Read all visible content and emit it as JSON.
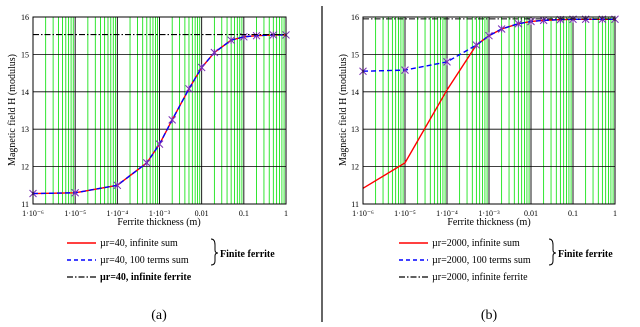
{
  "chart_data": [
    {
      "type": "line",
      "panel_label": "(a)",
      "xlabel": "Ferrite thickness (m)",
      "ylabel": "Magnetic field H (modulus)",
      "x_scale": "log",
      "xlim": [
        1e-06,
        1
      ],
      "ylim": [
        11,
        16
      ],
      "x_ticks": [
        1e-06,
        1e-05,
        0.0001,
        0.001,
        0.01,
        0.1,
        1
      ],
      "x_tick_labels": [
        "1·10⁻⁶",
        "1·10⁻⁵",
        "1·10⁻⁴",
        "1·10⁻³",
        "0.01",
        "0.1",
        "1"
      ],
      "y_ticks": [
        11,
        12,
        13,
        14,
        15,
        16
      ],
      "grid": true,
      "legend_position": "bottom-center",
      "brace_label": "Finite ferrite",
      "series": [
        {
          "name": "µr=40, infinite sum",
          "style": "solid",
          "color": "#ff0000",
          "x": [
            1e-06,
            1e-05,
            0.0001,
            0.0005,
            0.001,
            0.002,
            0.005,
            0.01,
            0.02,
            0.05,
            0.1,
            0.2,
            0.5,
            1
          ],
          "y": [
            11.28,
            11.3,
            11.5,
            12.1,
            12.6,
            13.25,
            14.08,
            14.65,
            15.05,
            15.38,
            15.47,
            15.5,
            15.52,
            15.52
          ]
        },
        {
          "name": "µr=40, 100 terms sum",
          "style": "dashed",
          "color": "#0000ff",
          "marker": "star",
          "x": [
            1e-06,
            1e-05,
            0.0001,
            0.0005,
            0.001,
            0.002,
            0.005,
            0.01,
            0.02,
            0.05,
            0.1,
            0.2,
            0.5,
            1
          ],
          "y": [
            11.28,
            11.3,
            11.5,
            12.1,
            12.6,
            13.25,
            14.08,
            14.65,
            15.05,
            15.38,
            15.47,
            15.5,
            15.52,
            15.52
          ]
        },
        {
          "name": "µr=40, infinite ferrite",
          "style": "dashdot",
          "color": "#000000",
          "x": [
            1e-06,
            1
          ],
          "y": [
            15.53,
            15.53
          ]
        }
      ]
    },
    {
      "type": "line",
      "panel_label": "(b)",
      "xlabel": "Ferrite thickness (m)",
      "ylabel": "Magnetic field H (modulus)",
      "x_scale": "log",
      "xlim": [
        1e-06,
        1
      ],
      "ylim": [
        11,
        16
      ],
      "x_ticks": [
        1e-06,
        1e-05,
        0.0001,
        0.001,
        0.01,
        0.1,
        1
      ],
      "x_tick_labels": [
        "1·10⁻⁶",
        "1·10⁻⁵",
        "1·10⁻⁴",
        "1·10⁻³",
        "0.01",
        "0.1",
        "1"
      ],
      "y_ticks": [
        11,
        12,
        13,
        14,
        15,
        16
      ],
      "grid": true,
      "legend_position": "bottom-center",
      "brace_label": "Finite ferrite",
      "series": [
        {
          "name": "µr=2000, infinite sum",
          "style": "solid",
          "color": "#ff0000",
          "x": [
            1e-06,
            1e-05,
            0.0001,
            0.0005,
            0.001,
            0.002,
            0.005,
            0.01,
            0.02,
            0.05,
            0.1,
            0.2,
            0.5,
            1
          ],
          "y": [
            11.42,
            12.1,
            14.05,
            15.25,
            15.5,
            15.68,
            15.82,
            15.88,
            15.91,
            15.93,
            15.94,
            15.94,
            15.94,
            15.94
          ]
        },
        {
          "name": "µr=2000, 100 terms sum",
          "style": "dashed",
          "color": "#0000ff",
          "marker": "star",
          "x": [
            1e-06,
            1e-05,
            0.0001,
            0.0005,
            0.001,
            0.002,
            0.005,
            0.01,
            0.02,
            0.05,
            0.1,
            0.2,
            0.5,
            1
          ],
          "y": [
            14.55,
            14.58,
            14.8,
            15.25,
            15.5,
            15.68,
            15.82,
            15.88,
            15.91,
            15.93,
            15.94,
            15.94,
            15.94,
            15.94
          ]
        },
        {
          "name": "µr=2000, infinite ferrite",
          "style": "dashdot",
          "color": "#000000",
          "x": [
            1e-06,
            1
          ],
          "y": [
            15.95,
            15.95
          ]
        }
      ]
    }
  ]
}
